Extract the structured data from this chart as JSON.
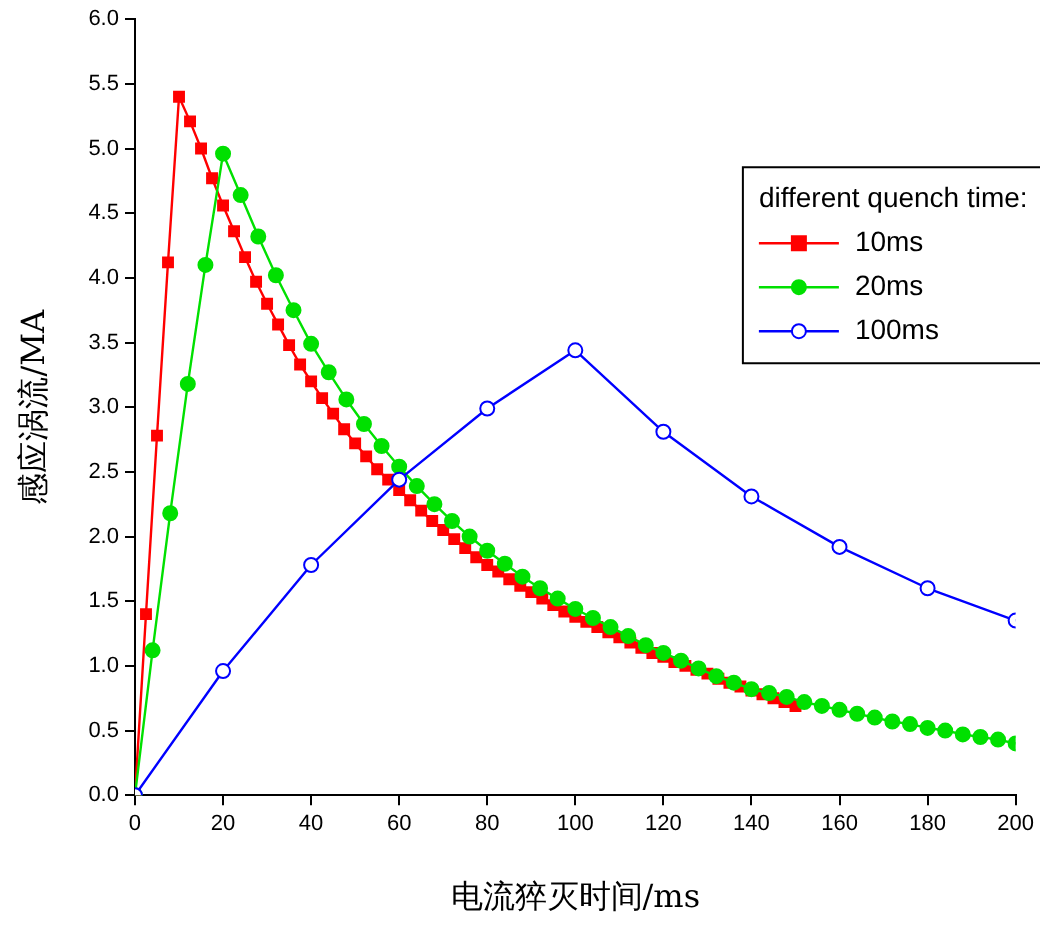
{
  "chart_data": {
    "type": "line",
    "xlabel": "电流猝灭时间/ms",
    "ylabel": "感应涡流/MA",
    "legend_title": "different quench time:",
    "legend": "top right",
    "grid": false,
    "xlim": [
      0,
      200
    ],
    "xticks": [
      0,
      20,
      40,
      60,
      80,
      100,
      120,
      140,
      160,
      180,
      200
    ],
    "ylim": [
      0,
      6
    ],
    "yticks": [
      {
        "value": 0,
        "label": "0.0"
      },
      {
        "value": 0.5,
        "label": "0.5"
      },
      {
        "value": 1,
        "label": "1.0"
      },
      {
        "value": 1.5,
        "label": "1.5"
      },
      {
        "value": 2,
        "label": "2.0"
      },
      {
        "value": 2.5,
        "label": "2.5"
      },
      {
        "value": 3,
        "label": "3.0"
      },
      {
        "value": 3.5,
        "label": "3.5"
      },
      {
        "value": 4,
        "label": "4.0"
      },
      {
        "value": 4.5,
        "label": "4.5"
      },
      {
        "value": 5,
        "label": "5.0"
      },
      {
        "value": 5.5,
        "label": "5.5"
      },
      {
        "value": 6,
        "label": "6.0"
      }
    ],
    "series": [
      {
        "name": "10ms",
        "color": "#ff0000",
        "marker": "square",
        "x": [
          0,
          2.5,
          5,
          7.5,
          10,
          12.5,
          15,
          17.5,
          20,
          22.5,
          25,
          27.5,
          30,
          32.5,
          35,
          37.5,
          40,
          42.5,
          45,
          47.5,
          50,
          52.5,
          55,
          57.5,
          60,
          62.5,
          65,
          67.5,
          70,
          72.5,
          75,
          77.5,
          80,
          82.5,
          85,
          87.5,
          90,
          92.5,
          95,
          97.5,
          100,
          102.5,
          105,
          107.5,
          110,
          112.5,
          115,
          117.5,
          120,
          122.5,
          125,
          127.5,
          130,
          132.5,
          135,
          137.5,
          140,
          142.5,
          145,
          147.5,
          150
        ],
        "values": [
          0,
          1.4,
          2.78,
          4.12,
          5.4,
          5.21,
          5.0,
          4.77,
          4.56,
          4.36,
          4.16,
          3.97,
          3.8,
          3.64,
          3.48,
          3.33,
          3.2,
          3.07,
          2.95,
          2.83,
          2.72,
          2.62,
          2.52,
          2.44,
          2.36,
          2.28,
          2.2,
          2.12,
          2.05,
          1.98,
          1.91,
          1.84,
          1.78,
          1.73,
          1.67,
          1.62,
          1.57,
          1.52,
          1.47,
          1.42,
          1.38,
          1.34,
          1.3,
          1.26,
          1.22,
          1.18,
          1.14,
          1.1,
          1.07,
          1.03,
          1.0,
          0.97,
          0.94,
          0.9,
          0.87,
          0.84,
          0.81,
          0.78,
          0.75,
          0.72,
          0.69
        ]
      },
      {
        "name": "20ms",
        "color": "#00e000",
        "marker": "circle",
        "x": [
          0,
          4,
          8,
          12,
          16,
          20,
          24,
          28,
          32,
          36,
          40,
          44,
          48,
          52,
          56,
          60,
          64,
          68,
          72,
          76,
          80,
          84,
          88,
          92,
          96,
          100,
          104,
          108,
          112,
          116,
          120,
          124,
          128,
          132,
          136,
          140,
          144,
          148,
          152,
          156,
          160,
          164,
          168,
          172,
          176,
          180,
          184,
          188,
          192,
          196,
          200
        ],
        "values": [
          0,
          1.12,
          2.18,
          3.18,
          4.1,
          4.96,
          4.64,
          4.32,
          4.02,
          3.75,
          3.49,
          3.27,
          3.06,
          2.87,
          2.7,
          2.54,
          2.39,
          2.25,
          2.12,
          2.0,
          1.89,
          1.79,
          1.69,
          1.6,
          1.52,
          1.44,
          1.37,
          1.3,
          1.23,
          1.16,
          1.1,
          1.04,
          0.98,
          0.92,
          0.87,
          0.82,
          0.79,
          0.76,
          0.72,
          0.69,
          0.66,
          0.63,
          0.6,
          0.57,
          0.55,
          0.52,
          0.5,
          0.47,
          0.45,
          0.43,
          0.4
        ]
      },
      {
        "name": "100ms",
        "color": "#0000ff",
        "marker": "open-circle",
        "x": [
          0,
          20,
          40,
          60,
          80,
          100,
          120,
          140,
          160,
          180,
          200
        ],
        "values": [
          0,
          0.96,
          1.78,
          2.44,
          2.99,
          3.44,
          2.81,
          2.31,
          1.92,
          1.6,
          1.35
        ]
      }
    ]
  }
}
